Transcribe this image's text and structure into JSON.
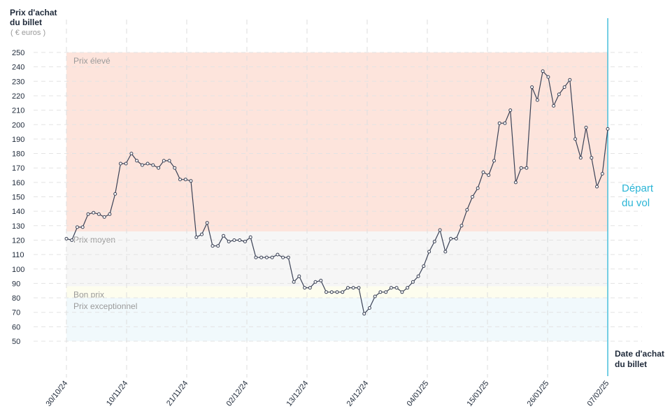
{
  "chart_data": {
    "type": "line",
    "ylabel": [
      "Prix d'achat",
      "du billet"
    ],
    "ylabel_unit": "( € euros )",
    "xlabel": [
      "Date d'achat",
      "du billet"
    ],
    "ylim": [
      50,
      250
    ],
    "yticks": [
      50,
      60,
      70,
      80,
      90,
      100,
      110,
      120,
      130,
      140,
      150,
      160,
      170,
      180,
      190,
      200,
      210,
      220,
      230,
      240,
      250
    ],
    "x_start": "2024-10-30",
    "x_end": "2025-02-07",
    "xtick_labels": [
      "30/10/24",
      "10/11/24",
      "21/11/24",
      "02/12/24",
      "13/12/24",
      "24/12/24",
      "04/01/25",
      "15/01/25",
      "26/01/25",
      "07/02/25"
    ],
    "bands": [
      {
        "label": "Prix élevé",
        "from": 126,
        "to": 250,
        "color": "#fde4dc"
      },
      {
        "label": "Prix moyen",
        "from": 88,
        "to": 126,
        "color": "#f6f6f6"
      },
      {
        "label": "Bon prix",
        "from": 80,
        "to": 88,
        "color": "#fdfdee"
      },
      {
        "label": "Prix exceptionnel",
        "from": 50,
        "to": 80,
        "color": "#f1f9fc"
      }
    ],
    "annotation": {
      "label": [
        "Départ",
        "du vol"
      ],
      "date": "2025-02-07",
      "color": "#2bb5d6"
    },
    "series": [
      {
        "line_color": "#3b4256",
        "x": [
          "2024-10-30",
          "2024-10-31",
          "2024-11-01",
          "2024-11-02",
          "2024-11-03",
          "2024-11-04",
          "2024-11-05",
          "2024-11-06",
          "2024-11-07",
          "2024-11-08",
          "2024-11-09",
          "2024-11-10",
          "2024-11-11",
          "2024-11-12",
          "2024-11-13",
          "2024-11-14",
          "2024-11-15",
          "2024-11-16",
          "2024-11-17",
          "2024-11-18",
          "2024-11-19",
          "2024-11-20",
          "2024-11-21",
          "2024-11-22",
          "2024-11-23",
          "2024-11-24",
          "2024-11-25",
          "2024-11-26",
          "2024-11-27",
          "2024-11-28",
          "2024-11-29",
          "2024-11-30",
          "2024-12-01",
          "2024-12-02",
          "2024-12-03",
          "2024-12-04",
          "2024-12-05",
          "2024-12-06",
          "2024-12-07",
          "2024-12-08",
          "2024-12-09",
          "2024-12-10",
          "2024-12-11",
          "2024-12-12",
          "2024-12-13",
          "2024-12-14",
          "2024-12-15",
          "2024-12-16",
          "2024-12-17",
          "2024-12-18",
          "2024-12-19",
          "2024-12-20",
          "2024-12-21",
          "2024-12-22",
          "2024-12-23",
          "2024-12-24",
          "2024-12-25",
          "2024-12-26",
          "2024-12-27",
          "2024-12-28",
          "2024-12-29",
          "2024-12-30",
          "2024-12-31",
          "2025-01-01",
          "2025-01-02",
          "2025-01-03",
          "2025-01-04",
          "2025-01-05",
          "2025-01-06",
          "2025-01-07",
          "2025-01-08",
          "2025-01-09",
          "2025-01-10",
          "2025-01-11",
          "2025-01-12",
          "2025-01-13",
          "2025-01-14",
          "2025-01-15",
          "2025-01-16",
          "2025-01-17",
          "2025-01-18",
          "2025-01-19",
          "2025-01-20",
          "2025-01-21",
          "2025-01-22",
          "2025-01-23",
          "2025-01-24",
          "2025-01-25",
          "2025-01-26",
          "2025-01-27",
          "2025-01-28",
          "2025-01-29",
          "2025-01-30",
          "2025-01-31",
          "2025-02-01",
          "2025-02-02",
          "2025-02-03",
          "2025-02-04",
          "2025-02-05",
          "2025-02-06",
          "2025-02-07"
        ],
        "values": [
          121,
          120,
          129,
          129,
          138,
          139,
          138,
          136,
          138,
          152,
          173,
          173,
          180,
          175,
          172,
          173,
          172,
          170,
          175,
          175,
          170,
          162,
          162,
          161,
          122,
          124,
          132,
          116,
          116,
          123,
          119,
          120,
          120,
          119,
          122,
          108,
          108,
          108,
          108,
          110,
          108,
          108,
          91,
          95,
          87,
          87,
          91,
          92,
          84,
          84,
          84,
          84,
          87,
          87,
          87,
          69,
          73,
          81,
          84,
          84,
          87,
          87,
          84,
          87,
          91,
          95,
          102,
          112,
          119,
          127,
          112,
          121,
          121,
          130,
          141,
          150,
          156,
          167,
          165,
          175,
          201,
          201,
          210,
          160,
          170,
          170,
          226,
          217,
          237,
          233,
          213,
          221,
          226,
          231,
          190,
          177,
          198,
          177,
          157,
          166,
          197
        ]
      }
    ]
  }
}
